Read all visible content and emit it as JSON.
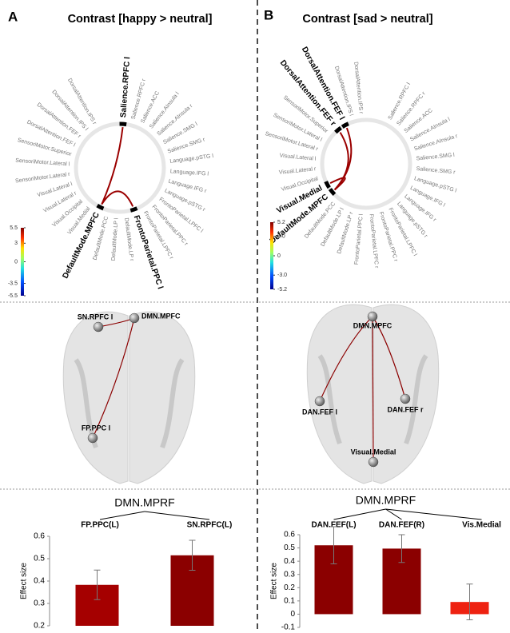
{
  "panels": [
    {
      "letter": "A",
      "title": "Contrast [happy > neutral]",
      "ring_labels": [
        {
          "text": "Salience.RPFC l",
          "bold": true
        },
        {
          "text": "Salience.RPFC r"
        },
        {
          "text": "Salience.ACC"
        },
        {
          "text": "Salience.AInsula l"
        },
        {
          "text": "Salience.AInsula r"
        },
        {
          "text": "Salience.SMG l"
        },
        {
          "text": "Salience.SMG r"
        },
        {
          "text": "Language.pSTG l"
        },
        {
          "text": "Language.IFG l"
        },
        {
          "text": "Language.IFG r"
        },
        {
          "text": "Language.pSTG r"
        },
        {
          "text": "FrontoParietal.LPFC l"
        },
        {
          "text": "FrontoParietal.PPC r"
        },
        {
          "text": "FrontoParietal.LPFC r"
        },
        {
          "text": "FrontoParietal.PPC l",
          "bold": true
        },
        {
          "text": "DefaultMode.LP r"
        },
        {
          "text": "DefaultMode.LP l"
        },
        {
          "text": "DefaultMode.PCC"
        },
        {
          "text": "DefaultMode.MPFC",
          "bold": true
        },
        {
          "text": "Visual.Medial"
        },
        {
          "text": "Visual.Occipital"
        },
        {
          "text": "Visual.Lateral r"
        },
        {
          "text": "Visual.Lateral l"
        },
        {
          "text": "SensoriMotor.Lateral r"
        },
        {
          "text": "SensoriMotor.Lateral l"
        },
        {
          "text": "SensoriMotor.Superior"
        },
        {
          "text": "DorsalAttention.FEF l"
        },
        {
          "text": "DorsalAttention.FEF r"
        },
        {
          "text": "DorsalAttention.IPS l"
        },
        {
          "text": "DorsalAttention.IPS r"
        }
      ],
      "colorbar_ticks": [
        5.5,
        3,
        0,
        -3.5,
        -5.5
      ],
      "brain_nodes": [
        "SN.RPFC l",
        "DMN.MPFC",
        "FP.PPC l"
      ]
    },
    {
      "letter": "B",
      "title": "Contrast [sad > neutral]",
      "ring_labels": [
        {
          "text": "Salience.RPFC l"
        },
        {
          "text": "Salience.RPFC r"
        },
        {
          "text": "Salience.ACC"
        },
        {
          "text": "Salience.AInsula l"
        },
        {
          "text": "Salience.AInsula r"
        },
        {
          "text": "Salience.SMG l"
        },
        {
          "text": "Salience.SMG r"
        },
        {
          "text": "Language.pSTG l"
        },
        {
          "text": "Language.IFG l"
        },
        {
          "text": "Language.IFG r"
        },
        {
          "text": "Language.pSTG r"
        },
        {
          "text": "FrontoParietal.LPFC l"
        },
        {
          "text": "FrontoParietal.PPC r"
        },
        {
          "text": "FrontoParietal.LPFC r"
        },
        {
          "text": "FrontoParietal.PPC l"
        },
        {
          "text": "DefaultMode.LP r"
        },
        {
          "text": "DefaultMode.LP l"
        },
        {
          "text": "DefaultMode.PCC"
        },
        {
          "text": "DefaultMode.MPFC",
          "bold": true
        },
        {
          "text": "Visual.Medial",
          "bold": true
        },
        {
          "text": "Visual.Occipital"
        },
        {
          "text": "Visual.Lateral r"
        },
        {
          "text": "Visual.Lateral l"
        },
        {
          "text": "SensoriMotor.Lateral r"
        },
        {
          "text": "SensoriMotor.Lateral l"
        },
        {
          "text": "SensoriMotor.Superior"
        },
        {
          "text": "DorsalAttention.FEF r",
          "bold": true
        },
        {
          "text": "DorsalAttention.FEF l",
          "bold": true
        },
        {
          "text": "DorsalAttention.IPS l"
        },
        {
          "text": "DorsalAttention.IPS r"
        }
      ],
      "colorbar_ticks": [
        5.2,
        {
          "value": 3,
          "label": "3.0"
        },
        0,
        {
          "value": -3,
          "label": "-3.0"
        },
        -5.2
      ],
      "brain_nodes": [
        "DMN.MPFC",
        "DAN.FEF l",
        "DAN.FEF r",
        "Visual.Medial"
      ]
    }
  ],
  "chart_data": [
    {
      "type": "bar",
      "title": "DMN.MPRF",
      "categories": [
        "FP.PPC(L)",
        "SN.RPFC(L)"
      ],
      "values": [
        0.383,
        0.515
      ],
      "errors": [
        0.066,
        0.067
      ],
      "colors": [
        "#a50000",
        "#8b0000"
      ],
      "y_label": "Effect size",
      "ylim": [
        0.2,
        0.6
      ],
      "yticks": [
        0.2,
        0.3,
        0.4,
        0.5,
        0.6
      ]
    },
    {
      "type": "bar",
      "title": "DMN.MPRF",
      "categories": [
        "DAN.FEF(L)",
        "DAN.FEF(R)",
        "Vis.Medial"
      ],
      "values": [
        0.52,
        0.495,
        0.092
      ],
      "errors": [
        0.14,
        0.105,
        0.135
      ],
      "colors": [
        "#8b0000",
        "#8b0000",
        "#ee2211"
      ],
      "y_label": "Effect size",
      "ylim": [
        -0.1,
        0.6
      ],
      "yticks": [
        -0.1,
        0,
        0.1,
        0.2,
        0.3,
        0.4,
        0.5,
        0.6
      ]
    }
  ]
}
